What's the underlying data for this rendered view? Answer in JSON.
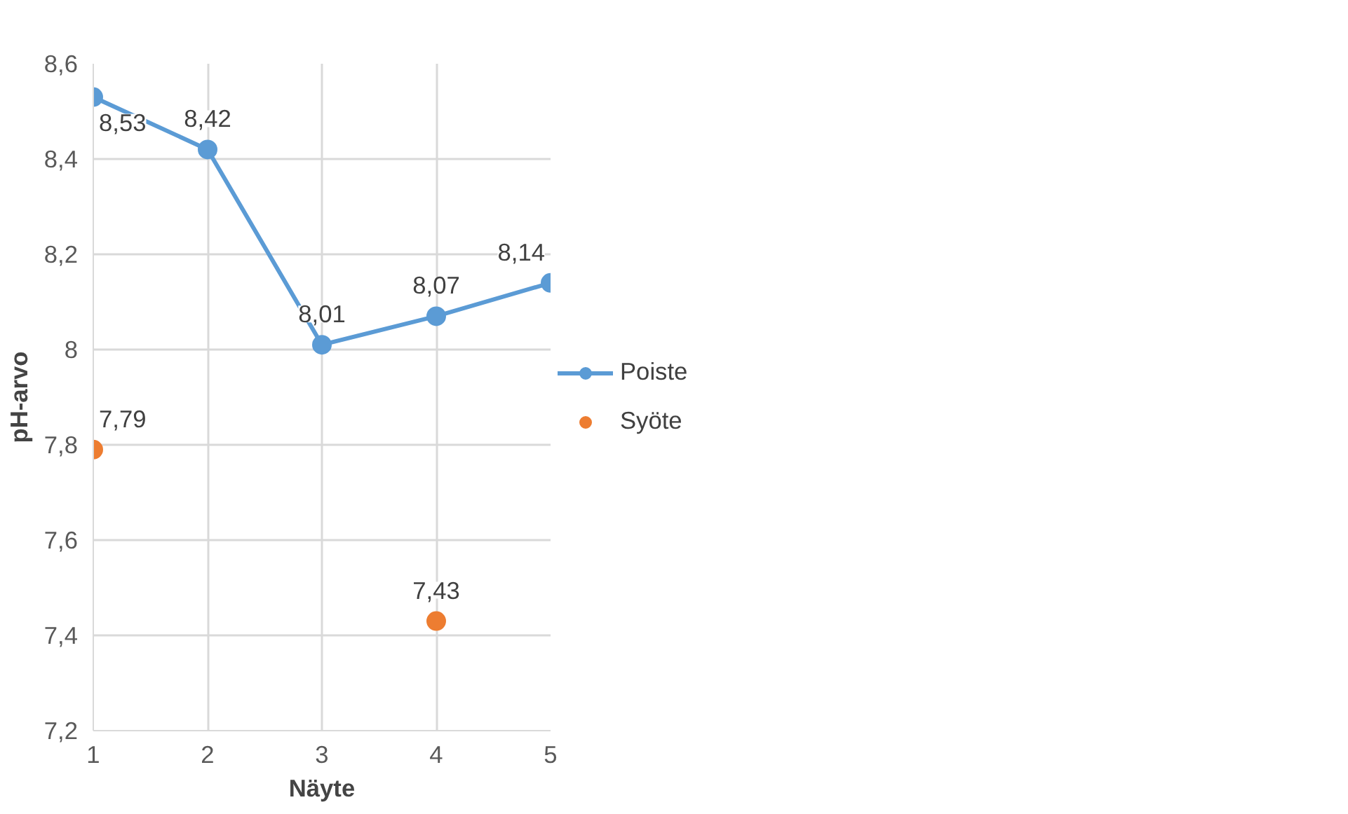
{
  "chart_data": {
    "type": "line",
    "xlabel": "Näyte",
    "ylabel": "pH-arvo",
    "x": [
      1,
      2,
      3,
      4,
      5
    ],
    "series": [
      {
        "name": "Poiste",
        "color": "#5b9bd5",
        "values": [
          8.53,
          8.42,
          8.01,
          8.07,
          8.14
        ],
        "value_labels": [
          "8,53",
          "8,42",
          "8,01",
          "8,07",
          "8,14"
        ]
      },
      {
        "name": "Syöte",
        "color": "#ed7d31",
        "type": "scatter",
        "values": [
          7.79,
          null,
          null,
          7.43,
          null
        ],
        "value_labels": [
          "7,79",
          null,
          null,
          "7,43",
          null
        ]
      }
    ],
    "xlim": [
      1,
      5
    ],
    "xticks": [
      1,
      2,
      3,
      4,
      5
    ],
    "ylim": [
      7.2,
      8.6
    ],
    "yticks": [
      {
        "value": 7.2,
        "label": "7,2"
      },
      {
        "value": 7.4,
        "label": "7,4"
      },
      {
        "value": 7.6,
        "label": "7,6"
      },
      {
        "value": 7.8,
        "label": "7,8"
      },
      {
        "value": 8,
        "label": "8"
      },
      {
        "value": 8.2,
        "label": "8,2"
      },
      {
        "value": 8.4,
        "label": "8,4"
      },
      {
        "value": 8.6,
        "label": "8,6"
      }
    ],
    "grid": true,
    "legend": "right",
    "marker": "circle",
    "line_style": "solid"
  }
}
